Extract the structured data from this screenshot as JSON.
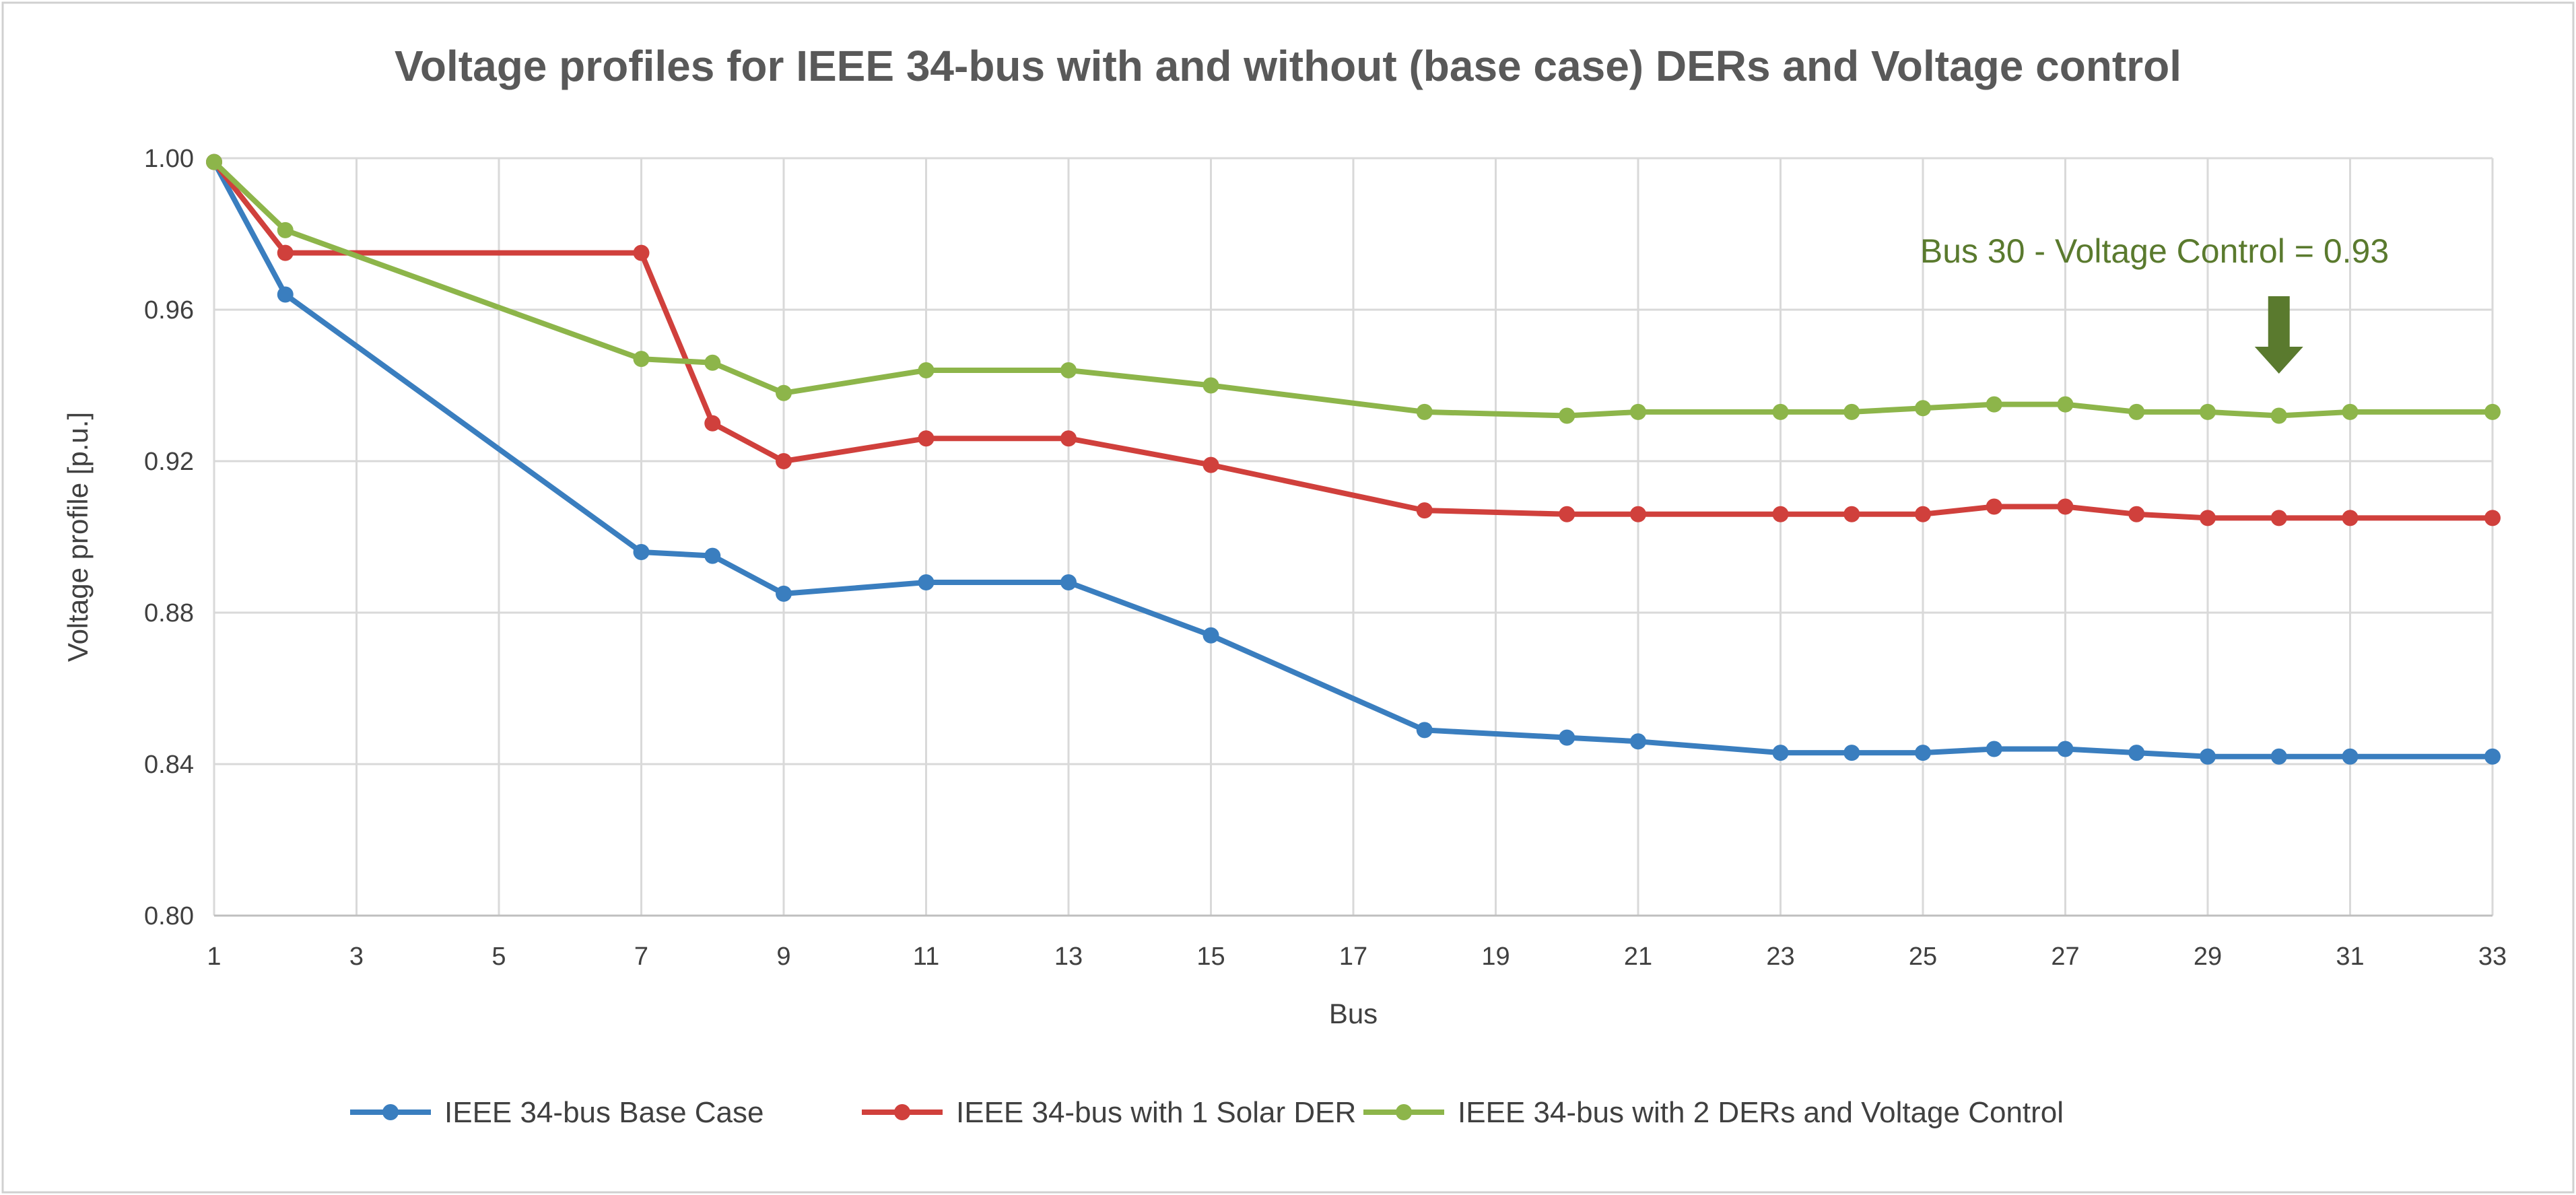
{
  "chart_data": {
    "type": "line",
    "title": "Voltage profiles for IEEE 34-bus with and without (base case) DERs and Voltage control",
    "xlabel": "Bus",
    "ylabel": "Voltage profile [p.u.]",
    "xlim": [
      1,
      33
    ],
    "ylim": [
      0.8,
      1.0
    ],
    "xticks": [
      "1",
      "3",
      "5",
      "7",
      "9",
      "11",
      "13",
      "15",
      "17",
      "19",
      "21",
      "23",
      "25",
      "27",
      "29",
      "31",
      "33"
    ],
    "yticks": [
      "0.80",
      "0.84",
      "0.88",
      "0.92",
      "0.96",
      "1.00"
    ],
    "grid": true,
    "legend_position": "bottom",
    "series": [
      {
        "name": "IEEE 34-bus Base Case",
        "color": "#3a7ebf",
        "points": [
          [
            1,
            0.999
          ],
          [
            2,
            0.964
          ],
          [
            7,
            0.896
          ],
          [
            8,
            0.895
          ],
          [
            9,
            0.885
          ],
          [
            11,
            0.888
          ],
          [
            13,
            0.888
          ],
          [
            15,
            0.874
          ],
          [
            18,
            0.849
          ],
          [
            20,
            0.847
          ],
          [
            21,
            0.846
          ],
          [
            23,
            0.843
          ],
          [
            24,
            0.843
          ],
          [
            25,
            0.843
          ],
          [
            26,
            0.844
          ],
          [
            27,
            0.844
          ],
          [
            28,
            0.843
          ],
          [
            29,
            0.842
          ],
          [
            30,
            0.842
          ],
          [
            31,
            0.842
          ],
          [
            33,
            0.842
          ]
        ]
      },
      {
        "name": "IEEE 34-bus with 1 Solar DER",
        "color": "#d0403c",
        "points": [
          [
            1,
            0.999
          ],
          [
            2,
            0.975
          ],
          [
            7,
            0.975
          ],
          [
            8,
            0.93
          ],
          [
            9,
            0.92
          ],
          [
            11,
            0.926
          ],
          [
            13,
            0.926
          ],
          [
            15,
            0.919
          ],
          [
            18,
            0.907
          ],
          [
            20,
            0.906
          ],
          [
            21,
            0.906
          ],
          [
            23,
            0.906
          ],
          [
            24,
            0.906
          ],
          [
            25,
            0.906
          ],
          [
            26,
            0.908
          ],
          [
            27,
            0.908
          ],
          [
            28,
            0.906
          ],
          [
            29,
            0.905
          ],
          [
            30,
            0.905
          ],
          [
            31,
            0.905
          ],
          [
            33,
            0.905
          ]
        ]
      },
      {
        "name": "IEEE 34-bus with 2 DERs and Voltage Control",
        "color": "#8db54a",
        "points": [
          [
            1,
            0.999
          ],
          [
            2,
            0.981
          ],
          [
            7,
            0.947
          ],
          [
            8,
            0.946
          ],
          [
            9,
            0.938
          ],
          [
            11,
            0.944
          ],
          [
            13,
            0.944
          ],
          [
            15,
            0.94
          ],
          [
            18,
            0.933
          ],
          [
            20,
            0.932
          ],
          [
            21,
            0.933
          ],
          [
            23,
            0.933
          ],
          [
            24,
            0.933
          ],
          [
            25,
            0.934
          ],
          [
            26,
            0.935
          ],
          [
            27,
            0.935
          ],
          [
            28,
            0.933
          ],
          [
            29,
            0.933
          ],
          [
            30,
            0.932
          ],
          [
            31,
            0.933
          ],
          [
            33,
            0.933
          ]
        ]
      }
    ],
    "annotation": {
      "text": "Bus 30 - Voltage Control = 0.93",
      "color": "#5a7a2e",
      "arrow_x": 30
    }
  }
}
